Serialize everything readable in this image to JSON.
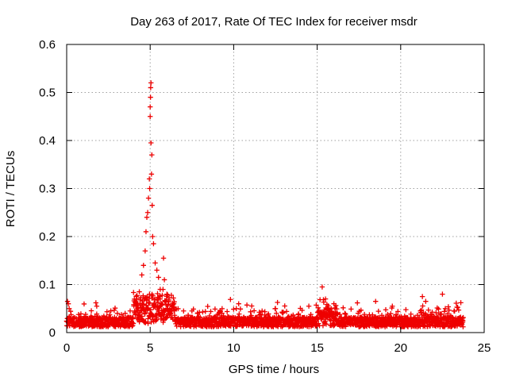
{
  "chart_data": {
    "type": "scatter",
    "title": "Day 263 of 2017, Rate Of TEC Index for receiver msdr",
    "xlabel": "GPS time / hours",
    "ylabel": "ROTI / TECUs",
    "xlim": [
      0,
      25
    ],
    "ylim": [
      0,
      0.6
    ],
    "xticks": [
      "0",
      "5",
      "10",
      "15",
      "20",
      "25"
    ],
    "yticks": [
      "0",
      "0.1",
      "0.2",
      "0.3",
      "0.4",
      "0.5",
      "0.6"
    ],
    "grid": true,
    "marker": "+",
    "color": "#ee0000",
    "series": [
      {
        "name": "ROTI",
        "x_start": 0.0,
        "x_end": 23.75,
        "notes": "dense background ~0.01-0.04 TECU with scattered values up to ~0.07; peak near 5 h",
        "highlights": [
          {
            "x": 0.05,
            "y": 0.065
          },
          {
            "x": 0.1,
            "y": 0.06
          },
          {
            "x": 0.15,
            "y": 0.05
          },
          {
            "x": 1.75,
            "y": 0.062
          },
          {
            "x": 1.8,
            "y": 0.055
          },
          {
            "x": 3.5,
            "y": 0.04
          },
          {
            "x": 3.8,
            "y": 0.045
          },
          {
            "x": 4.2,
            "y": 0.07
          },
          {
            "x": 4.35,
            "y": 0.085
          },
          {
            "x": 4.5,
            "y": 0.12
          },
          {
            "x": 4.6,
            "y": 0.14
          },
          {
            "x": 4.7,
            "y": 0.17
          },
          {
            "x": 4.75,
            "y": 0.21
          },
          {
            "x": 4.8,
            "y": 0.24
          },
          {
            "x": 4.85,
            "y": 0.25
          },
          {
            "x": 4.9,
            "y": 0.28
          },
          {
            "x": 4.95,
            "y": 0.32
          },
          {
            "x": 4.97,
            "y": 0.3
          },
          {
            "x": 5.0,
            "y": 0.45
          },
          {
            "x": 5.0,
            "y": 0.47
          },
          {
            "x": 5.02,
            "y": 0.49
          },
          {
            "x": 5.03,
            "y": 0.51
          },
          {
            "x": 5.05,
            "y": 0.52
          },
          {
            "x": 5.05,
            "y": 0.395
          },
          {
            "x": 5.1,
            "y": 0.37
          },
          {
            "x": 5.08,
            "y": 0.33
          },
          {
            "x": 5.12,
            "y": 0.265
          },
          {
            "x": 5.15,
            "y": 0.2
          },
          {
            "x": 5.2,
            "y": 0.185
          },
          {
            "x": 5.3,
            "y": 0.145
          },
          {
            "x": 5.4,
            "y": 0.13
          },
          {
            "x": 5.5,
            "y": 0.115
          },
          {
            "x": 5.6,
            "y": 0.09
          },
          {
            "x": 5.8,
            "y": 0.155
          },
          {
            "x": 5.85,
            "y": 0.11
          },
          {
            "x": 6.0,
            "y": 0.08
          },
          {
            "x": 6.3,
            "y": 0.05
          },
          {
            "x": 7.0,
            "y": 0.045
          },
          {
            "x": 7.5,
            "y": 0.045
          },
          {
            "x": 10.3,
            "y": 0.06
          },
          {
            "x": 12.5,
            "y": 0.05
          },
          {
            "x": 14.5,
            "y": 0.055
          },
          {
            "x": 15.3,
            "y": 0.095
          },
          {
            "x": 15.5,
            "y": 0.07
          },
          {
            "x": 16.0,
            "y": 0.06
          },
          {
            "x": 18.5,
            "y": 0.065
          },
          {
            "x": 19.5,
            "y": 0.055
          },
          {
            "x": 21.3,
            "y": 0.075
          },
          {
            "x": 21.5,
            "y": 0.065
          },
          {
            "x": 22.5,
            "y": 0.08
          },
          {
            "x": 23.0,
            "y": 0.035
          },
          {
            "x": 23.5,
            "y": 0.03
          }
        ]
      }
    ]
  }
}
